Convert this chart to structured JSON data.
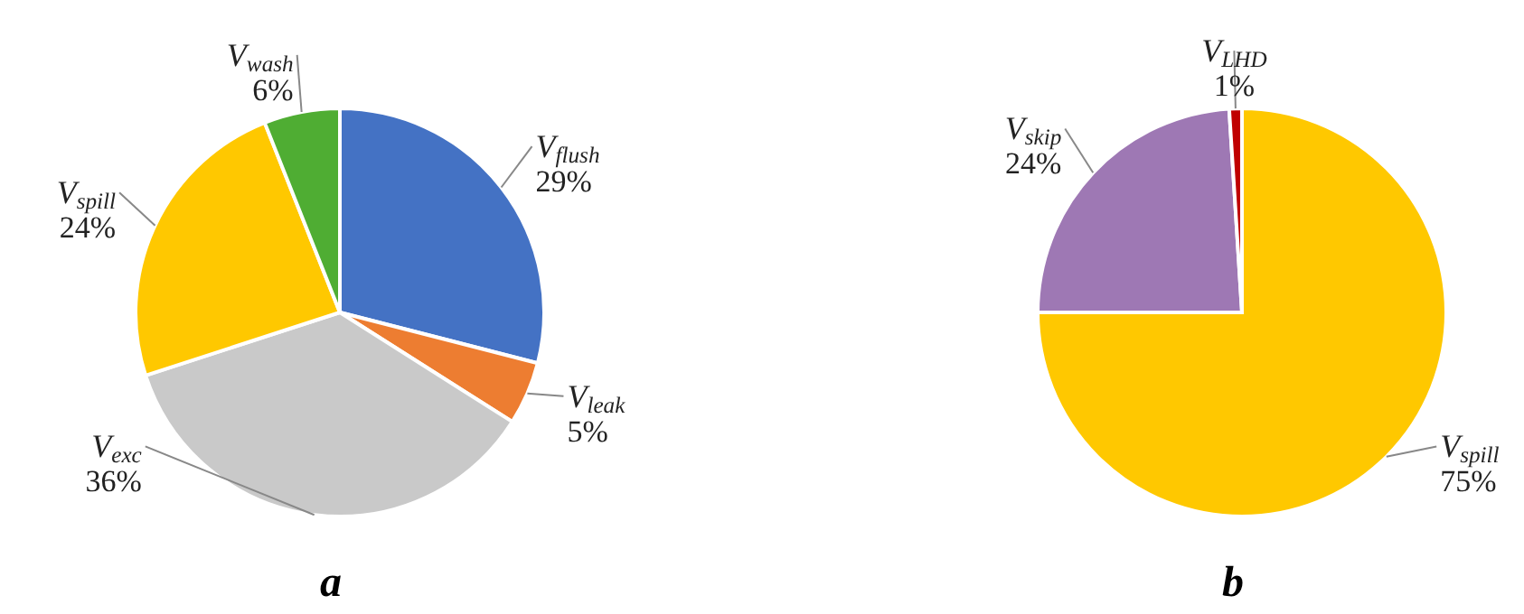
{
  "chart_data": [
    {
      "type": "pie",
      "title": "a",
      "categories": [
        "V$_{flush}$",
        "V$_{leak}$",
        "V$_{exc}$",
        "V$_{spill}$",
        "V$_{wash}$"
      ],
      "values": [
        29,
        5,
        36,
        24,
        6
      ],
      "colors": [
        "#4472c4",
        "#ed7d31",
        "#c9c9c9",
        "#ffc800",
        "#4fad33"
      ],
      "value_labels": [
        "29%",
        "5%",
        "36%",
        "24%",
        "6%"
      ]
    },
    {
      "type": "pie",
      "title": "b",
      "categories": [
        "V$_{spill}$",
        "V$_{skip}$",
        "V$_{LHD}$"
      ],
      "values": [
        75,
        24,
        1
      ],
      "colors": [
        "#ffc800",
        "#9e78b4",
        "#c00000"
      ],
      "value_labels": [
        "75%",
        "24%",
        "1%"
      ]
    }
  ]
}
